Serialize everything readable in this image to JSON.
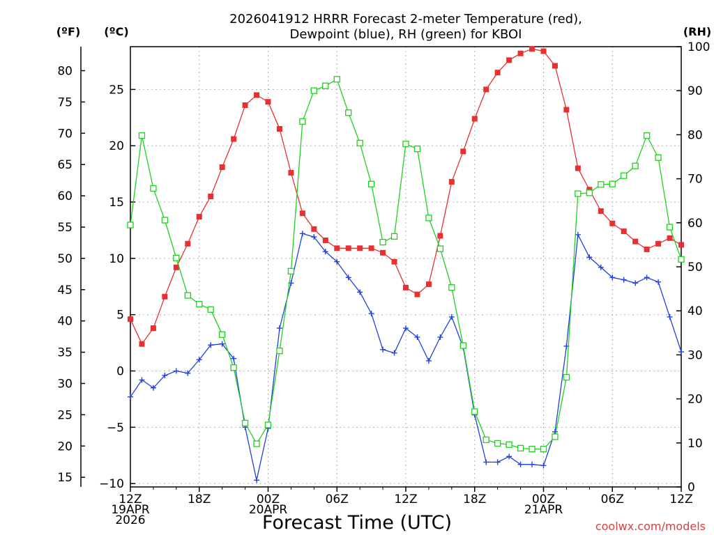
{
  "chart_data": {
    "type": "line",
    "title": "2026041912 HRRR Forecast 2-meter Temperature (red),",
    "subtitle": "Dewpoint (blue), RH (green) for KBOI",
    "xlabel": "Forecast Time (UTC)",
    "credit": "coolwx.com/models",
    "units": {
      "fahrenheit": "(ºF)",
      "celsius": "(ºC)",
      "rh": "(RH)"
    },
    "x_ticks": [
      {
        "hour": 0,
        "lines": [
          "12Z",
          "19APR",
          "2026"
        ]
      },
      {
        "hour": 6,
        "lines": [
          "18Z"
        ]
      },
      {
        "hour": 12,
        "lines": [
          "00Z",
          "20APR"
        ]
      },
      {
        "hour": 18,
        "lines": [
          "06Z"
        ]
      },
      {
        "hour": 24,
        "lines": [
          "12Z"
        ]
      },
      {
        "hour": 30,
        "lines": [
          "18Z"
        ]
      },
      {
        "hour": 36,
        "lines": [
          "00Z",
          "21APR"
        ]
      },
      {
        "hour": 42,
        "lines": [
          "06Z"
        ]
      },
      {
        "hour": 48,
        "lines": [
          "12Z"
        ]
      }
    ],
    "xlim": [
      0,
      48
    ],
    "celsius_axis": {
      "ylim": [
        -10.3,
        28.8
      ],
      "ticks": [
        -10,
        -5,
        0,
        5,
        10,
        15,
        20,
        25
      ]
    },
    "fahrenheit_ticks": [
      15,
      20,
      25,
      30,
      35,
      40,
      45,
      50,
      55,
      60,
      65,
      70,
      75,
      80
    ],
    "rh_axis": {
      "ylim": [
        0,
        100
      ],
      "ticks": [
        0,
        10,
        20,
        30,
        40,
        50,
        60,
        70,
        80,
        90,
        100
      ]
    },
    "grid": true,
    "series": [
      {
        "name": "Temperature",
        "color": "#e83030",
        "axis": "celsius",
        "marker": "filled-square",
        "values": [
          4.6,
          2.4,
          3.8,
          6.6,
          9.2,
          11.3,
          13.7,
          15.5,
          18.1,
          20.6,
          23.6,
          24.5,
          23.9,
          21.5,
          17.6,
          14.0,
          12.6,
          11.6,
          10.9,
          10.9,
          10.9,
          10.9,
          10.5,
          9.7,
          7.4,
          6.8,
          7.7,
          12.0,
          16.8,
          19.5,
          22.4,
          25.0,
          26.5,
          27.6,
          28.2,
          28.6,
          28.4,
          27.1,
          23.2,
          18.0,
          16.1,
          14.2,
          13.1,
          12.4,
          11.5,
          10.8,
          11.3,
          11.8,
          11.2
        ]
      },
      {
        "name": "Dewpoint",
        "color": "#2040e0",
        "axis": "celsius",
        "marker": "plus",
        "values": [
          -2.3,
          -0.8,
          -1.5,
          -0.4,
          0.0,
          -0.2,
          1.0,
          2.3,
          2.4,
          1.1,
          -5.0,
          -9.7,
          -5.1,
          3.8,
          7.8,
          12.2,
          11.9,
          10.6,
          9.7,
          8.3,
          7.0,
          5.1,
          1.9,
          1.6,
          3.8,
          3.0,
          0.9,
          3.0,
          4.8,
          2.1,
          -3.9,
          -8.1,
          -8.1,
          -7.6,
          -8.3,
          -8.3,
          -8.4,
          -5.4,
          2.2,
          12.1,
          10.1,
          9.2,
          8.3,
          8.1,
          7.8,
          8.3,
          7.9,
          4.8,
          1.7
        ]
      },
      {
        "name": "RH",
        "color": "#20d020",
        "axis": "rh",
        "marker": "open-square",
        "values": [
          59.5,
          79.8,
          67.8,
          60.6,
          52.0,
          43.5,
          41.5,
          40.3,
          34.6,
          27.1,
          14.5,
          9.8,
          14.1,
          30.9,
          49.0,
          83.0,
          90.0,
          91.1,
          92.6,
          85.0,
          78.1,
          68.8,
          55.6,
          56.9,
          77.9,
          76.8,
          61.1,
          54.1,
          45.3,
          32.1,
          17.1,
          10.7,
          9.9,
          9.6,
          8.8,
          8.6,
          8.6,
          11.4,
          24.9,
          66.6,
          66.8,
          68.7,
          68.8,
          70.7,
          72.9,
          79.8,
          74.8,
          59.0,
          51.7
        ]
      }
    ]
  }
}
